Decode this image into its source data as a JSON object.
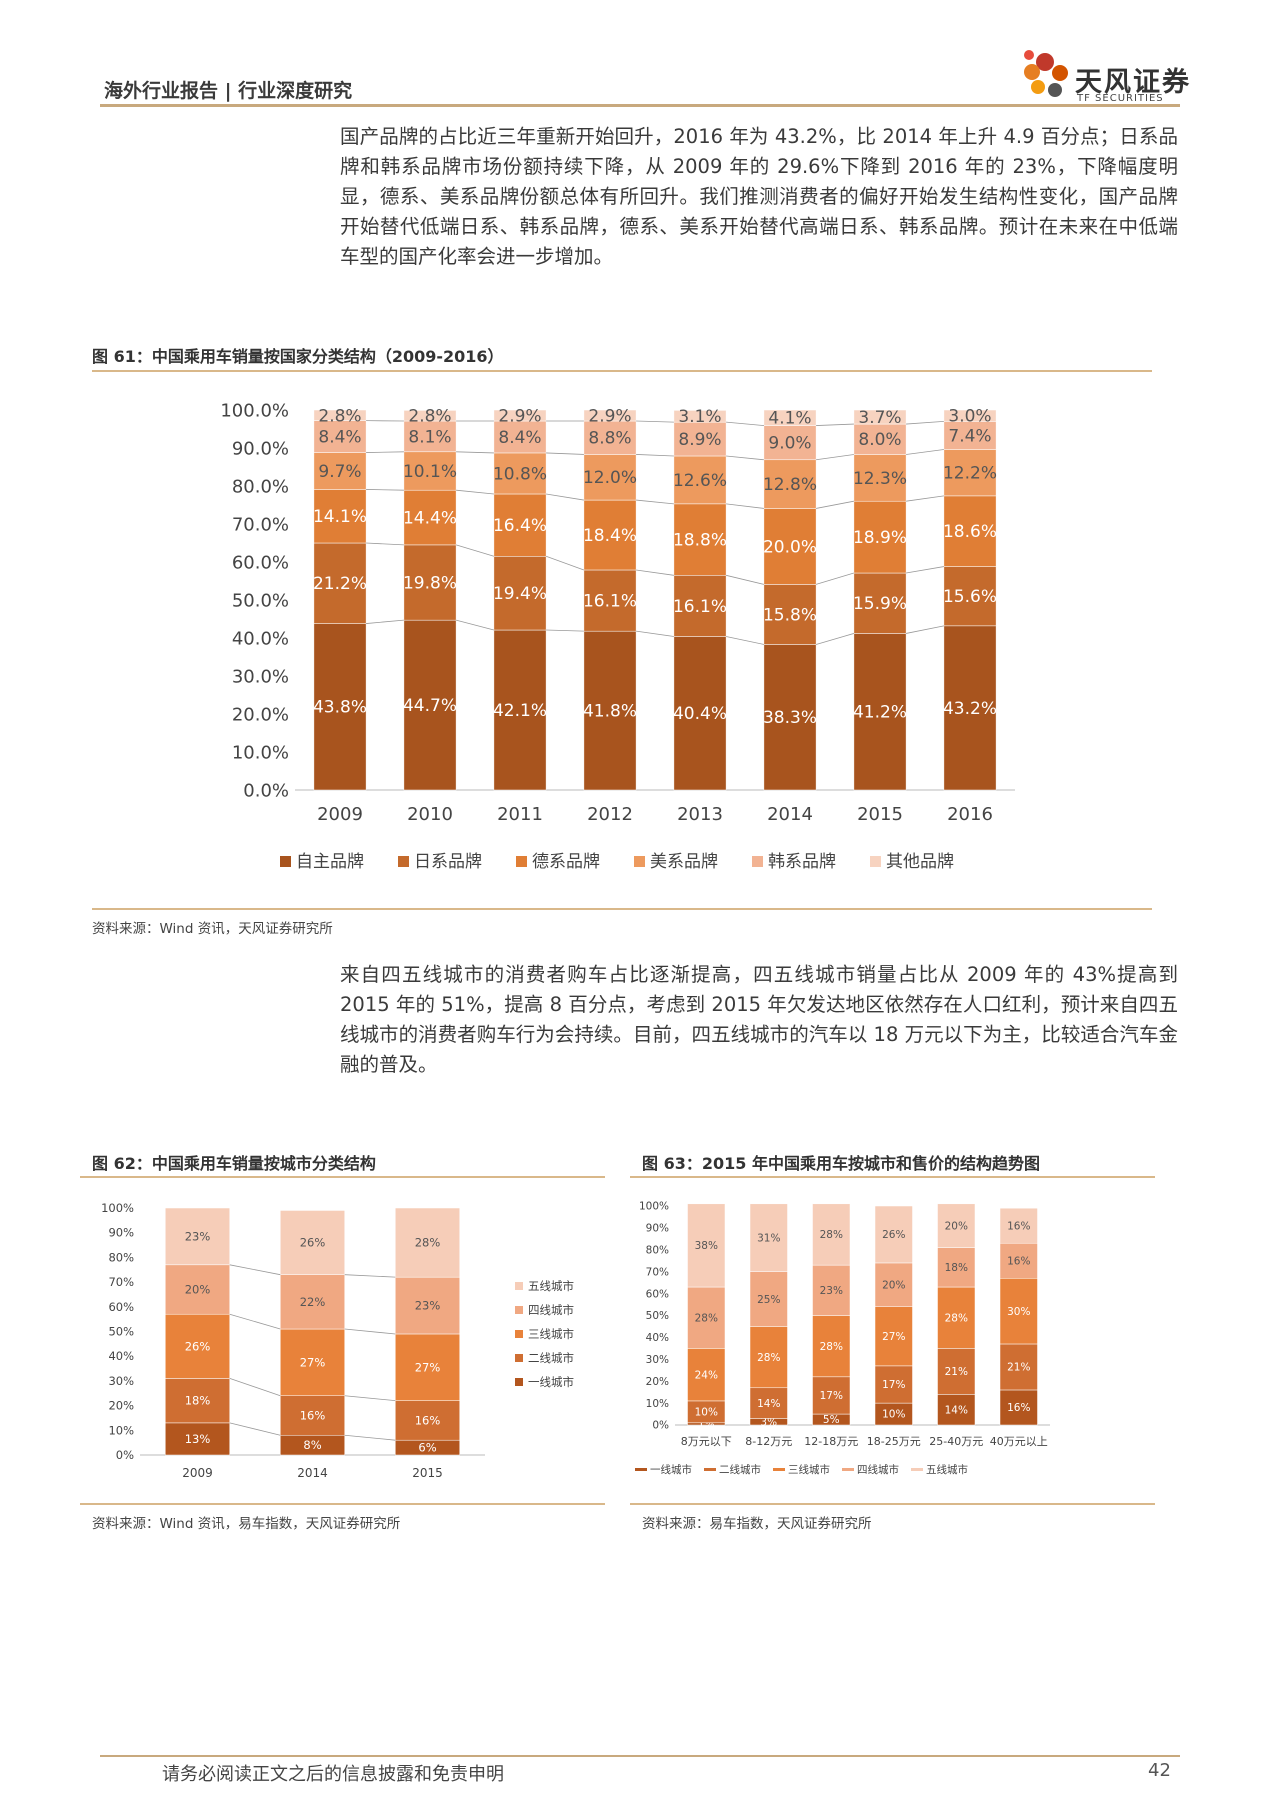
{
  "header": {
    "title": "海外行业报告 | 行业深度研究",
    "logo_cn": "天风证券",
    "logo_en": "TF SECURITIES"
  },
  "paragraph1": "国产品牌的占比近三年重新开始回升，2016 年为 43.2%，比 2014 年上升 4.9 百分点；日系品牌和韩系品牌市场份额持续下降，从 2009 年的 29.6%下降到 2016 年的 23%，下降幅度明显，德系、美系品牌份额总体有所回升。我们推测消费者的偏好开始发生结构性变化，国产品牌开始替代低端日系、韩系品牌，德系、美系开始替代高端日系、韩系品牌。预计在未来在中低端车型的国产化率会进一步增加。",
  "paragraph2": "来自四五线城市的消费者购车占比逐渐提高，四五线城市销量占比从 2009 年的 43%提高到 2015 年的 51%，提高 8 百分点，考虑到 2015 年欠发达地区依然存在人口红利，预计来自四五线城市的消费者购车行为会持续。目前，四五线城市的汽车以 18 万元以下为主，比较适合汽车金融的普及。",
  "fig61": {
    "title": "图 61：中国乘用车销量按国家分类结构（2009-2016）",
    "source": "资料来源：Wind 资讯，天风证券研究所"
  },
  "fig62": {
    "title": "图 62：中国乘用车销量按城市分类结构",
    "source": "资料来源：Wind 资讯，易车指数，天风证券研究所"
  },
  "fig63": {
    "title": "图 63：2015 年中国乘用车按城市和售价的结构趋势图",
    "source": "资料来源：易车指数，天风证券研究所"
  },
  "footer": {
    "disclaimer": "请务必阅读正文之后的信息披露和免责申明",
    "page": "42"
  },
  "chart_data": [
    {
      "type": "bar",
      "stacked": true,
      "categories": [
        "2009",
        "2010",
        "2011",
        "2012",
        "2013",
        "2014",
        "2015",
        "2016"
      ],
      "series": [
        {
          "name": "自主品牌",
          "color": "#a8541e",
          "values": [
            43.8,
            44.7,
            42.1,
            41.8,
            40.4,
            38.3,
            41.2,
            43.2
          ]
        },
        {
          "name": "日系品牌",
          "color": "#c46a2c",
          "values": [
            21.2,
            19.8,
            19.4,
            16.1,
            16.1,
            15.8,
            15.9,
            15.6
          ]
        },
        {
          "name": "德系品牌",
          "color": "#e07e35",
          "values": [
            14.1,
            14.4,
            16.4,
            18.4,
            18.8,
            20.0,
            18.9,
            18.6
          ]
        },
        {
          "name": "美系品牌",
          "color": "#ed9a5e",
          "values": [
            9.7,
            10.1,
            10.8,
            12.0,
            12.6,
            12.8,
            12.3,
            12.2
          ]
        },
        {
          "name": "韩系品牌",
          "color": "#f2b393",
          "values": [
            8.4,
            8.1,
            8.4,
            8.8,
            8.9,
            9.0,
            8.0,
            7.4
          ]
        },
        {
          "name": "其他品牌",
          "color": "#f7d3c0",
          "values": [
            2.8,
            2.8,
            2.9,
            2.9,
            3.1,
            4.1,
            3.7,
            3.0
          ]
        }
      ],
      "ylim": [
        0,
        100
      ],
      "yticks": [
        "0.0%",
        "10.0%",
        "20.0%",
        "30.0%",
        "40.0%",
        "50.0%",
        "60.0%",
        "70.0%",
        "80.0%",
        "90.0%",
        "100.0%"
      ],
      "legend": "bottom"
    },
    {
      "type": "bar",
      "stacked": true,
      "categories": [
        "2009",
        "2014",
        "2015"
      ],
      "series": [
        {
          "name": "一线城市",
          "color": "#b3561e",
          "values": [
            13,
            8,
            6
          ]
        },
        {
          "name": "二线城市",
          "color": "#cf6e32",
          "values": [
            18,
            16,
            16
          ]
        },
        {
          "name": "三线城市",
          "color": "#e8823a",
          "values": [
            26,
            27,
            27
          ]
        },
        {
          "name": "四线城市",
          "color": "#f0a882",
          "values": [
            20,
            22,
            23
          ]
        },
        {
          "name": "五线城市",
          "color": "#f6cdb8",
          "values": [
            23,
            26,
            28
          ]
        }
      ],
      "ylim": [
        0,
        100
      ],
      "yticks": [
        "0%",
        "10%",
        "20%",
        "30%",
        "40%",
        "50%",
        "60%",
        "70%",
        "80%",
        "90%",
        "100%"
      ],
      "legend": "right"
    },
    {
      "type": "bar",
      "stacked": true,
      "categories": [
        "8万元以下",
        "8-12万元",
        "12-18万元",
        "18-25万元",
        "25-40万元",
        "40万元以上"
      ],
      "series": [
        {
          "name": "一线城市",
          "color": "#b3561e",
          "values": [
            1,
            3,
            5,
            10,
            14,
            16
          ]
        },
        {
          "name": "二线城市",
          "color": "#cf6e32",
          "values": [
            10,
            14,
            17,
            17,
            21,
            21
          ]
        },
        {
          "name": "三线城市",
          "color": "#e8823a",
          "values": [
            24,
            28,
            28,
            27,
            28,
            30
          ]
        },
        {
          "name": "四线城市",
          "color": "#f0a882",
          "values": [
            28,
            25,
            23,
            20,
            18,
            16
          ]
        },
        {
          "name": "五线城市",
          "color": "#f6cdb8",
          "values": [
            38,
            31,
            28,
            26,
            20,
            16
          ]
        }
      ],
      "labels": [
        [
          "1%",
          "3%",
          "5%",
          "10%",
          "14%",
          "16%"
        ],
        [
          "10%",
          "14%",
          "17%",
          "17%",
          "21%",
          "21%"
        ],
        [
          "24%",
          "28%",
          "28%",
          "27%",
          "28%",
          "30%"
        ],
        [
          "28%",
          "25%",
          "23%",
          "20%",
          "18%",
          "16%"
        ],
        [
          "38%",
          "31%",
          "28%",
          "26%",
          "20%",
          "16%"
        ]
      ],
      "ylim": [
        0,
        100
      ],
      "yticks": [
        "0%",
        "10%",
        "20%",
        "30%",
        "40%",
        "50%",
        "60%",
        "70%",
        "80%",
        "90%",
        "100%"
      ],
      "legend": "bottom"
    }
  ]
}
